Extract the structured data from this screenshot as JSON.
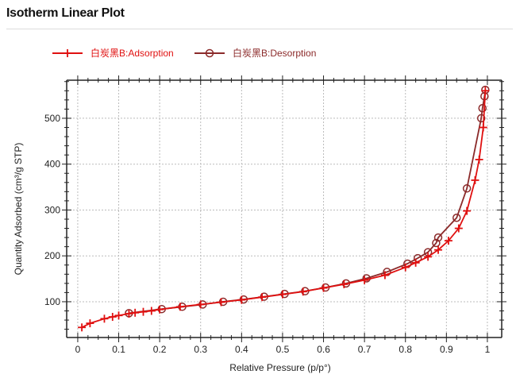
{
  "header": {
    "title": "Isotherm Linear Plot"
  },
  "chart_data": {
    "type": "line",
    "title": "Isotherm Linear Plot",
    "xlabel": "Relative Pressure (p/p°)",
    "ylabel": "Quantity Adsorbed (cm³/g STP)",
    "xlim": [
      -0.027,
      1.035
    ],
    "ylim": [
      22,
      583
    ],
    "xticks": [
      0,
      0.1,
      0.2,
      0.3,
      0.4,
      0.5,
      0.6,
      0.7,
      0.8,
      0.9,
      1
    ],
    "xtick_labels": [
      "0",
      "0.1",
      "0.2",
      "0.3",
      "0.4",
      "0.5",
      "0.6",
      "0.7",
      "0.8",
      "0.9",
      "1"
    ],
    "yticks": [
      100,
      200,
      300,
      400,
      500
    ],
    "ytick_labels": [
      "100",
      "200",
      "300",
      "400",
      "500"
    ],
    "grid": true,
    "legend_position": "top-left",
    "series": [
      {
        "name": "白炭黑B:Adsorption",
        "color": "#e01010",
        "marker": "plus",
        "x": [
          0.01,
          0.03,
          0.065,
          0.085,
          0.1,
          0.125,
          0.14,
          0.16,
          0.18,
          0.2,
          0.25,
          0.3,
          0.35,
          0.4,
          0.45,
          0.5,
          0.55,
          0.6,
          0.65,
          0.7,
          0.75,
          0.8,
          0.825,
          0.855,
          0.88,
          0.905,
          0.93,
          0.95,
          0.97,
          0.98,
          0.99,
          0.995
        ],
        "y": [
          44,
          53,
          63,
          67,
          70,
          74,
          76,
          78,
          80,
          83,
          89,
          94,
          99,
          104,
          110,
          116,
          122,
          130,
          138,
          147,
          158,
          175,
          185,
          198,
          213,
          233,
          260,
          298,
          365,
          410,
          480,
          560
        ]
      },
      {
        "name": "白炭黑B:Desorption",
        "color": "#8b2a2a",
        "marker": "circle",
        "x": [
          0.995,
          0.993,
          0.988,
          0.985,
          0.95,
          0.925,
          0.88,
          0.875,
          0.855,
          0.83,
          0.805,
          0.755,
          0.705,
          0.655,
          0.605,
          0.555,
          0.505,
          0.455,
          0.405,
          0.355,
          0.305,
          0.255,
          0.205,
          0.125
        ],
        "y": [
          562,
          548,
          522,
          500,
          347,
          283,
          240,
          228,
          208,
          195,
          183,
          165,
          151,
          140,
          131,
          123,
          117,
          111,
          105,
          100,
          94,
          89,
          84,
          75
        ]
      }
    ]
  }
}
